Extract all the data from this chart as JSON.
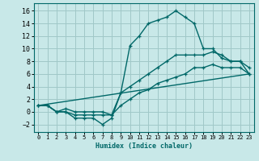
{
  "xlabel": "Humidex (Indice chaleur)",
  "background_color": "#c8e8e8",
  "grid_color": "#a0c8c8",
  "line_color": "#006868",
  "xlim": [
    -0.5,
    23.5
  ],
  "ylim": [
    -3.2,
    17.2
  ],
  "yticks": [
    -2,
    0,
    2,
    4,
    6,
    8,
    10,
    12,
    14,
    16
  ],
  "xticks": [
    0,
    1,
    2,
    3,
    4,
    5,
    6,
    7,
    8,
    9,
    10,
    11,
    12,
    13,
    14,
    15,
    16,
    17,
    18,
    19,
    20,
    21,
    22,
    23
  ],
  "line1_x": [
    0,
    1,
    2,
    3,
    4,
    5,
    6,
    7,
    8,
    9,
    10,
    11,
    12,
    13,
    14,
    15,
    16,
    17,
    18,
    19,
    20,
    21,
    22,
    23
  ],
  "line1_y": [
    1,
    1,
    0,
    0,
    -1,
    -1,
    -1,
    -2,
    -1,
    3,
    10.5,
    12,
    14,
    14.5,
    15,
    16,
    15,
    14,
    10,
    10,
    8.5,
    8,
    8,
    7
  ],
  "line2_x": [
    0,
    1,
    2,
    3,
    4,
    5,
    6,
    7,
    8,
    9,
    10,
    11,
    12,
    13,
    14,
    15,
    16,
    17,
    18,
    19,
    20,
    21,
    22,
    23
  ],
  "line2_y": [
    1,
    1,
    0,
    0.5,
    0,
    0,
    0,
    0,
    -0.5,
    3,
    4,
    5,
    6,
    7,
    8,
    9,
    9,
    9,
    9,
    9.5,
    9,
    8,
    8,
    6
  ],
  "line3_x": [
    0,
    1,
    2,
    3,
    4,
    5,
    6,
    7,
    8,
    9,
    10,
    11,
    12,
    13,
    14,
    15,
    16,
    17,
    18,
    19,
    20,
    21,
    22,
    23
  ],
  "line3_y": [
    1,
    1,
    0,
    0,
    -0.5,
    -0.5,
    -0.5,
    -0.5,
    -0.5,
    1,
    2,
    3,
    3.5,
    4.5,
    5,
    5.5,
    6,
    7,
    7,
    7.5,
    7,
    7,
    7,
    6
  ],
  "line4_x": [
    0,
    23
  ],
  "line4_y": [
    1,
    6
  ],
  "xlabel_fontsize": 6.0,
  "ytick_fontsize": 6.0,
  "xtick_fontsize": 5.0
}
